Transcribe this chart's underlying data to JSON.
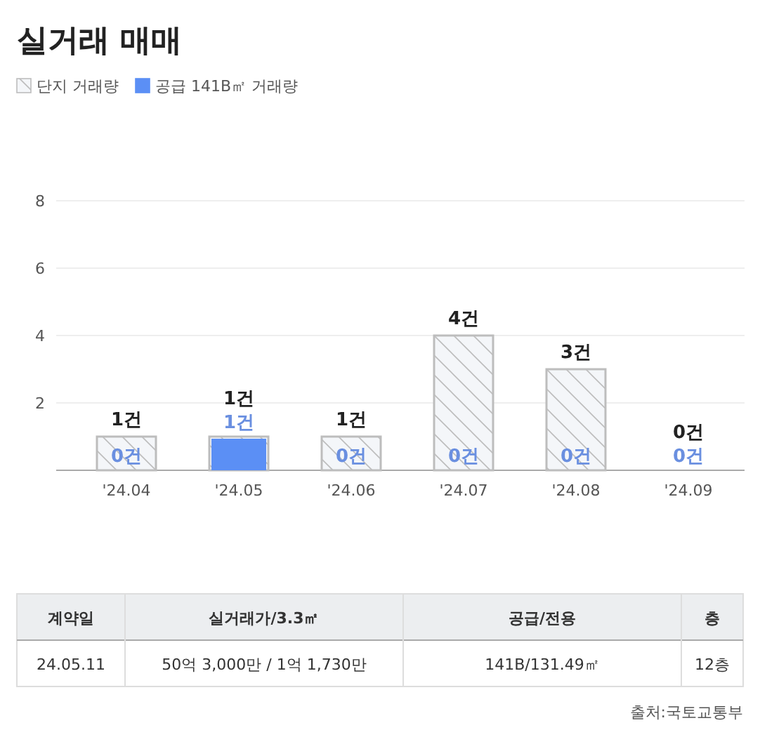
{
  "chart_data": {
    "type": "bar",
    "title": "실거래 매매",
    "categories": [
      "'24.04",
      "'24.05",
      "'24.06",
      "'24.07",
      "'24.08",
      "'24.09"
    ],
    "series": [
      {
        "name": "단지 거래량",
        "color": "#bdbdbd",
        "values": [
          1,
          1,
          1,
          4,
          3,
          0
        ],
        "value_labels": [
          "1건",
          "1건",
          "1건",
          "4건",
          "3건",
          "0건"
        ]
      },
      {
        "name": "공급 141B㎡ 거래량",
        "color": "#5b8ff5",
        "values": [
          0,
          1,
          0,
          0,
          0,
          0
        ],
        "value_labels": [
          "0건",
          "1건",
          "0건",
          "0건",
          "0건",
          "0건"
        ]
      }
    ],
    "ylim": [
      0,
      8
    ],
    "yticks": [
      2,
      4,
      6,
      8
    ],
    "grid": "y",
    "legend": "top left",
    "annotations": [
      "계약일",
      "실거래가/3.3㎡",
      "공급/전용",
      "층",
      "24.05.11",
      "50억 3,000만 / 1억 1,730만",
      "141B/131.49㎡",
      "12층",
      "출처:국토교통부"
    ]
  }
}
